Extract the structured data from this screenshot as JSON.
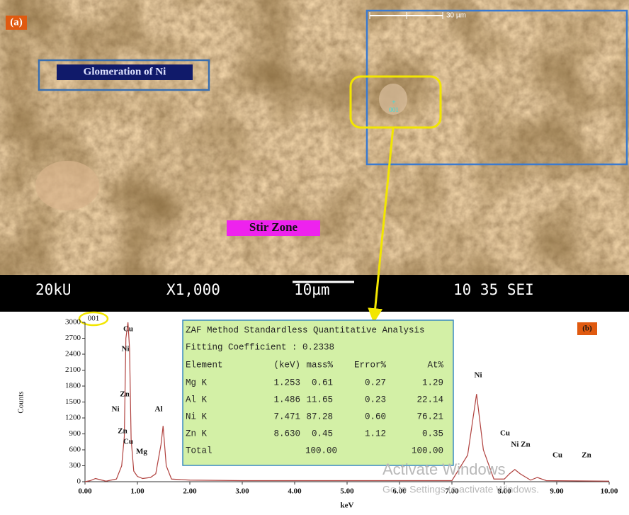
{
  "sem": {
    "panel_label": "(a)",
    "annotation": "Glomeration of Ni",
    "zone_label": "Stir Zone",
    "inset_scale": "30 µm",
    "point_label": "001",
    "info_bar": [
      "20kU",
      "X1,000",
      "10µm",
      "10 35 SEI"
    ]
  },
  "chart_data": {
    "type": "line",
    "panel_label": "(b)",
    "spot_label": "001",
    "x_label": "keV",
    "y_label": "Counts",
    "color": "#b0413e",
    "x": [
      0,
      0.1,
      0.2,
      0.28,
      0.4,
      0.6,
      0.7,
      0.75,
      0.78,
      0.82,
      0.85,
      0.88,
      0.93,
      1.0,
      1.1,
      1.25,
      1.35,
      1.45,
      1.49,
      1.55,
      1.65,
      2.0,
      3.0,
      5.0,
      7.0,
      7.3,
      7.47,
      7.6,
      7.8,
      8.0,
      8.1,
      8.2,
      8.3,
      8.5,
      8.63,
      8.8,
      10.0
    ],
    "values": [
      0,
      20,
      60,
      40,
      10,
      50,
      300,
      850,
      2700,
      3000,
      2500,
      800,
      200,
      100,
      60,
      80,
      150,
      700,
      1050,
      300,
      50,
      30,
      20,
      20,
      20,
      500,
      1650,
      600,
      50,
      50,
      150,
      230,
      150,
      30,
      80,
      20,
      10
    ],
    "xlim": [
      0,
      10
    ],
    "ylim": [
      0,
      3000
    ],
    "xticks": [
      {
        "value": 0,
        "label": "0.00"
      },
      {
        "value": 1,
        "label": "1.00"
      },
      {
        "value": 2,
        "label": "2.00"
      },
      {
        "value": 3,
        "label": "3.00"
      },
      {
        "value": 4,
        "label": "4.00"
      },
      {
        "value": 5,
        "label": "5.00"
      },
      {
        "value": 6,
        "label": "6.00"
      },
      {
        "value": 7,
        "label": "7.00"
      },
      {
        "value": 8,
        "label": "8.00"
      },
      {
        "value": 9,
        "label": "9.00"
      },
      {
        "value": 10,
        "label": "10.00"
      }
    ],
    "yticks": [
      0,
      300,
      600,
      900,
      1200,
      1500,
      1800,
      2100,
      2400,
      2700,
      3000
    ],
    "peak_labels": [
      "Cu",
      "Ni",
      "Zn",
      "Ni",
      "Zn",
      "Cu",
      "Mg",
      "Al",
      "Ni",
      "Cu",
      "Ni Zn",
      "Cu",
      "Zn"
    ]
  },
  "table": {
    "title": "ZAF Method Standardless Quantitative Analysis",
    "fitting": "Fitting Coefficient : 0.2338",
    "header": [
      "Element",
      "(keV)",
      "mass%",
      "Error%",
      "At%"
    ],
    "rows": [
      [
        "Mg K",
        "1.253",
        "0.61",
        "0.27",
        "1.29"
      ],
      [
        "Al K",
        "1.486",
        "11.65",
        "0.23",
        "22.14"
      ],
      [
        "Ni K",
        "7.471",
        "87.28",
        "0.60",
        "76.21"
      ],
      [
        "Zn K",
        "8.630",
        "0.45",
        "1.12",
        "0.35"
      ]
    ],
    "total": {
      "label": "Total",
      "mass": "100.00",
      "at": "100.00"
    }
  },
  "watermark": [
    "Activate Windows",
    "Go to Settings to activate Windows."
  ]
}
